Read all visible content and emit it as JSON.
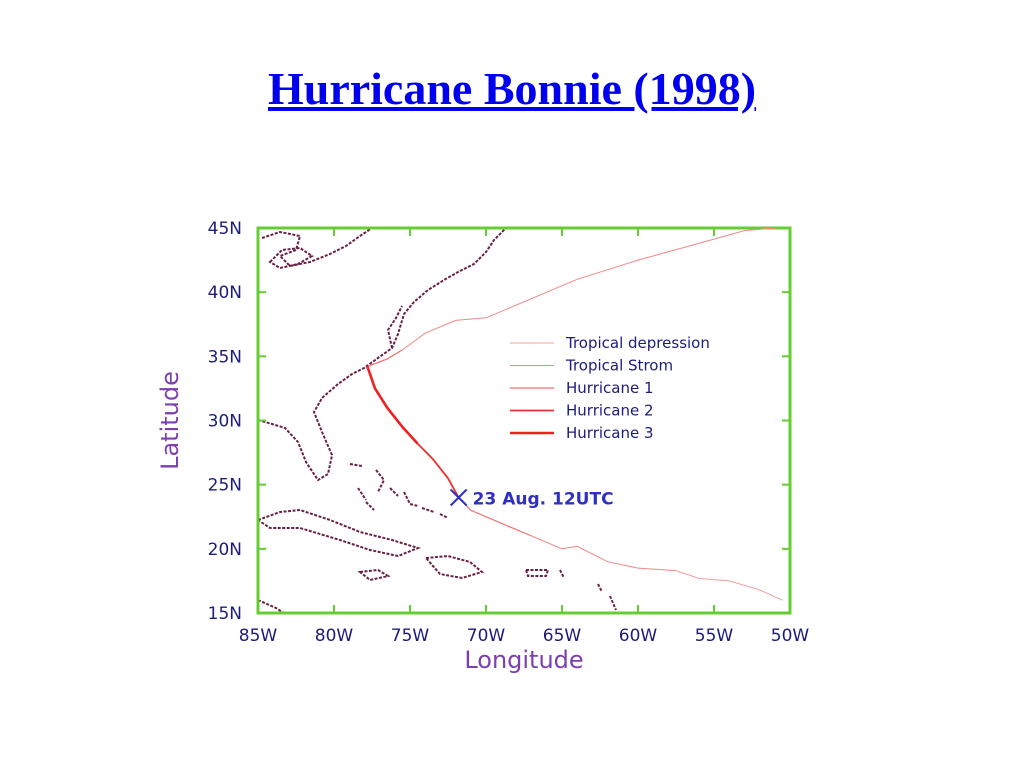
{
  "chart_data": {
    "type": "line",
    "title": "Hurricane Bonnie (1998)",
    "x_label": "Longitude",
    "y_label": "Latitude",
    "xlim": [
      -85,
      -50
    ],
    "ylim": [
      15,
      45
    ],
    "xticks": [
      {
        "value": -85,
        "label": "85W"
      },
      {
        "value": -80,
        "label": "80W"
      },
      {
        "value": -75,
        "label": "75W"
      },
      {
        "value": -70,
        "label": "70W"
      },
      {
        "value": -65,
        "label": "65W"
      },
      {
        "value": -60,
        "label": "60W"
      },
      {
        "value": -55,
        "label": "55W"
      },
      {
        "value": -50,
        "label": "50W"
      }
    ],
    "yticks": [
      {
        "value": 15,
        "label": "15N"
      },
      {
        "value": 20,
        "label": "20N"
      },
      {
        "value": 25,
        "label": "25N"
      },
      {
        "value": 30,
        "label": "30N"
      },
      {
        "value": 35,
        "label": "35N"
      },
      {
        "value": 40,
        "label": "40N"
      },
      {
        "value": 45,
        "label": "45N"
      }
    ],
    "frame_color": "#66cc33",
    "legend": "upper right",
    "series": [
      {
        "name": "Tropical depression",
        "color": "#f4a0a0",
        "width": 1,
        "x": [
          -50.5,
          -52,
          -54,
          -56,
          -57.5
        ],
        "values": [
          16,
          16.8,
          17.5,
          17.7,
          18.3
        ]
      },
      {
        "name": "Tropical Strom",
        "color": "#f08888",
        "width": 1,
        "x": [
          -57.5,
          -60,
          -62,
          -64,
          -65,
          -67,
          null,
          -75.5,
          -74,
          -72,
          -70,
          -67,
          -64,
          -60,
          -56,
          -53,
          -51
        ],
        "values": [
          18.3,
          18.5,
          19,
          20.2,
          20,
          21,
          null,
          35.5,
          36.8,
          37.8,
          38,
          39.5,
          41,
          42.5,
          43.8,
          44.8,
          45
        ]
      },
      {
        "name": "Hurricane 1",
        "color": "#f07070",
        "width": 1.2,
        "x": [
          -67,
          -69,
          -71,
          -71.8,
          null,
          -77.8,
          -76.5,
          -75.5
        ],
        "values": [
          21,
          22,
          23,
          24,
          null,
          34.2,
          34.8,
          35.5
        ]
      },
      {
        "name": "Hurricane 2",
        "color": "#ee3030",
        "width": 1.8,
        "x": [
          -71.8,
          -72.5,
          -73.5,
          -74.5
        ],
        "values": [
          24,
          25.5,
          27,
          28.2
        ]
      },
      {
        "name": "Hurricane 3",
        "color": "#ee2020",
        "width": 2.6,
        "x": [
          -74.5,
          -75.5,
          -76.5,
          -77.3,
          -77.8
        ],
        "values": [
          28.2,
          29.5,
          31,
          32.5,
          34.2
        ]
      }
    ],
    "annotation": {
      "text": "23 Aug. 12UTC",
      "x": -71.8,
      "y": 24,
      "color": "#3030c0"
    }
  }
}
